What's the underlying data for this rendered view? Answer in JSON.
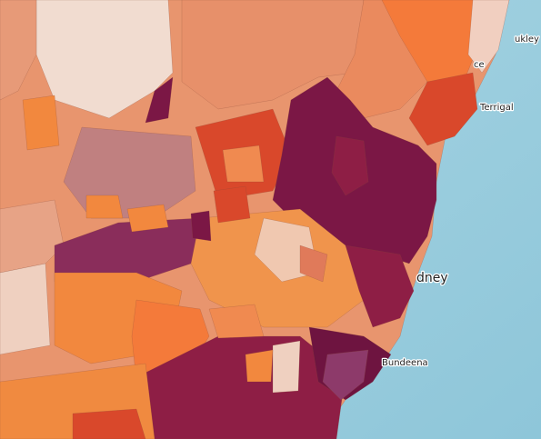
{
  "map": {
    "labels": [
      "ukley",
      "ce",
      "Terrigal",
      "dney",
      "Bundeena"
    ]
  }
}
